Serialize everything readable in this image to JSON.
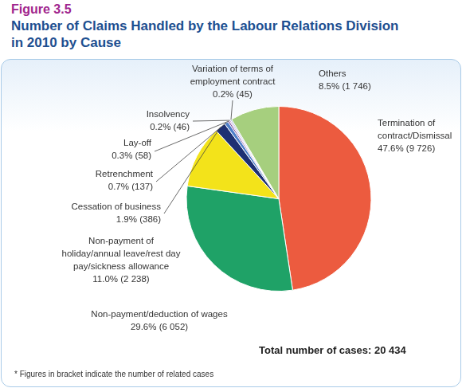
{
  "chart_data": {
    "type": "pie",
    "title": "Number of Claims Handled by the Labour Relations Division in 2010 by Cause",
    "annotations": [
      "Figure 3.5",
      "Total number of cases: 20 434",
      "* Figures in bracket indicate the number of related cases"
    ],
    "categories": [
      "Termination of contract/Dismissal",
      "Non-payment/deduction of wages",
      "Non-payment of holiday/annual leave/rest day pay/sickness allowance",
      "Cessation of business",
      "Retrenchment",
      "Lay-off",
      "Insolvency",
      "Variation of terms of employment contract",
      "Others"
    ],
    "values": [
      9726,
      6052,
      2238,
      386,
      137,
      58,
      46,
      45,
      1746
    ],
    "value_labels": [
      "47.6% (9 726)",
      "29.6% (6 052)",
      "11.0% (2 238)",
      "1.9% (386)",
      "0.7% (137)",
      "0.3% (58)",
      "0.2% (46)",
      "0.2% (45)",
      "8.5% (1 746)"
    ],
    "colors": [
      "#ec5b3f",
      "#1fa267",
      "#f3e31a",
      "#1e2f73",
      "#4f7fc9",
      "#7b4fa0",
      "#c9a1d8",
      "#8fa8d8",
      "#a6cf7e"
    ],
    "data_labels": true
  }
}
